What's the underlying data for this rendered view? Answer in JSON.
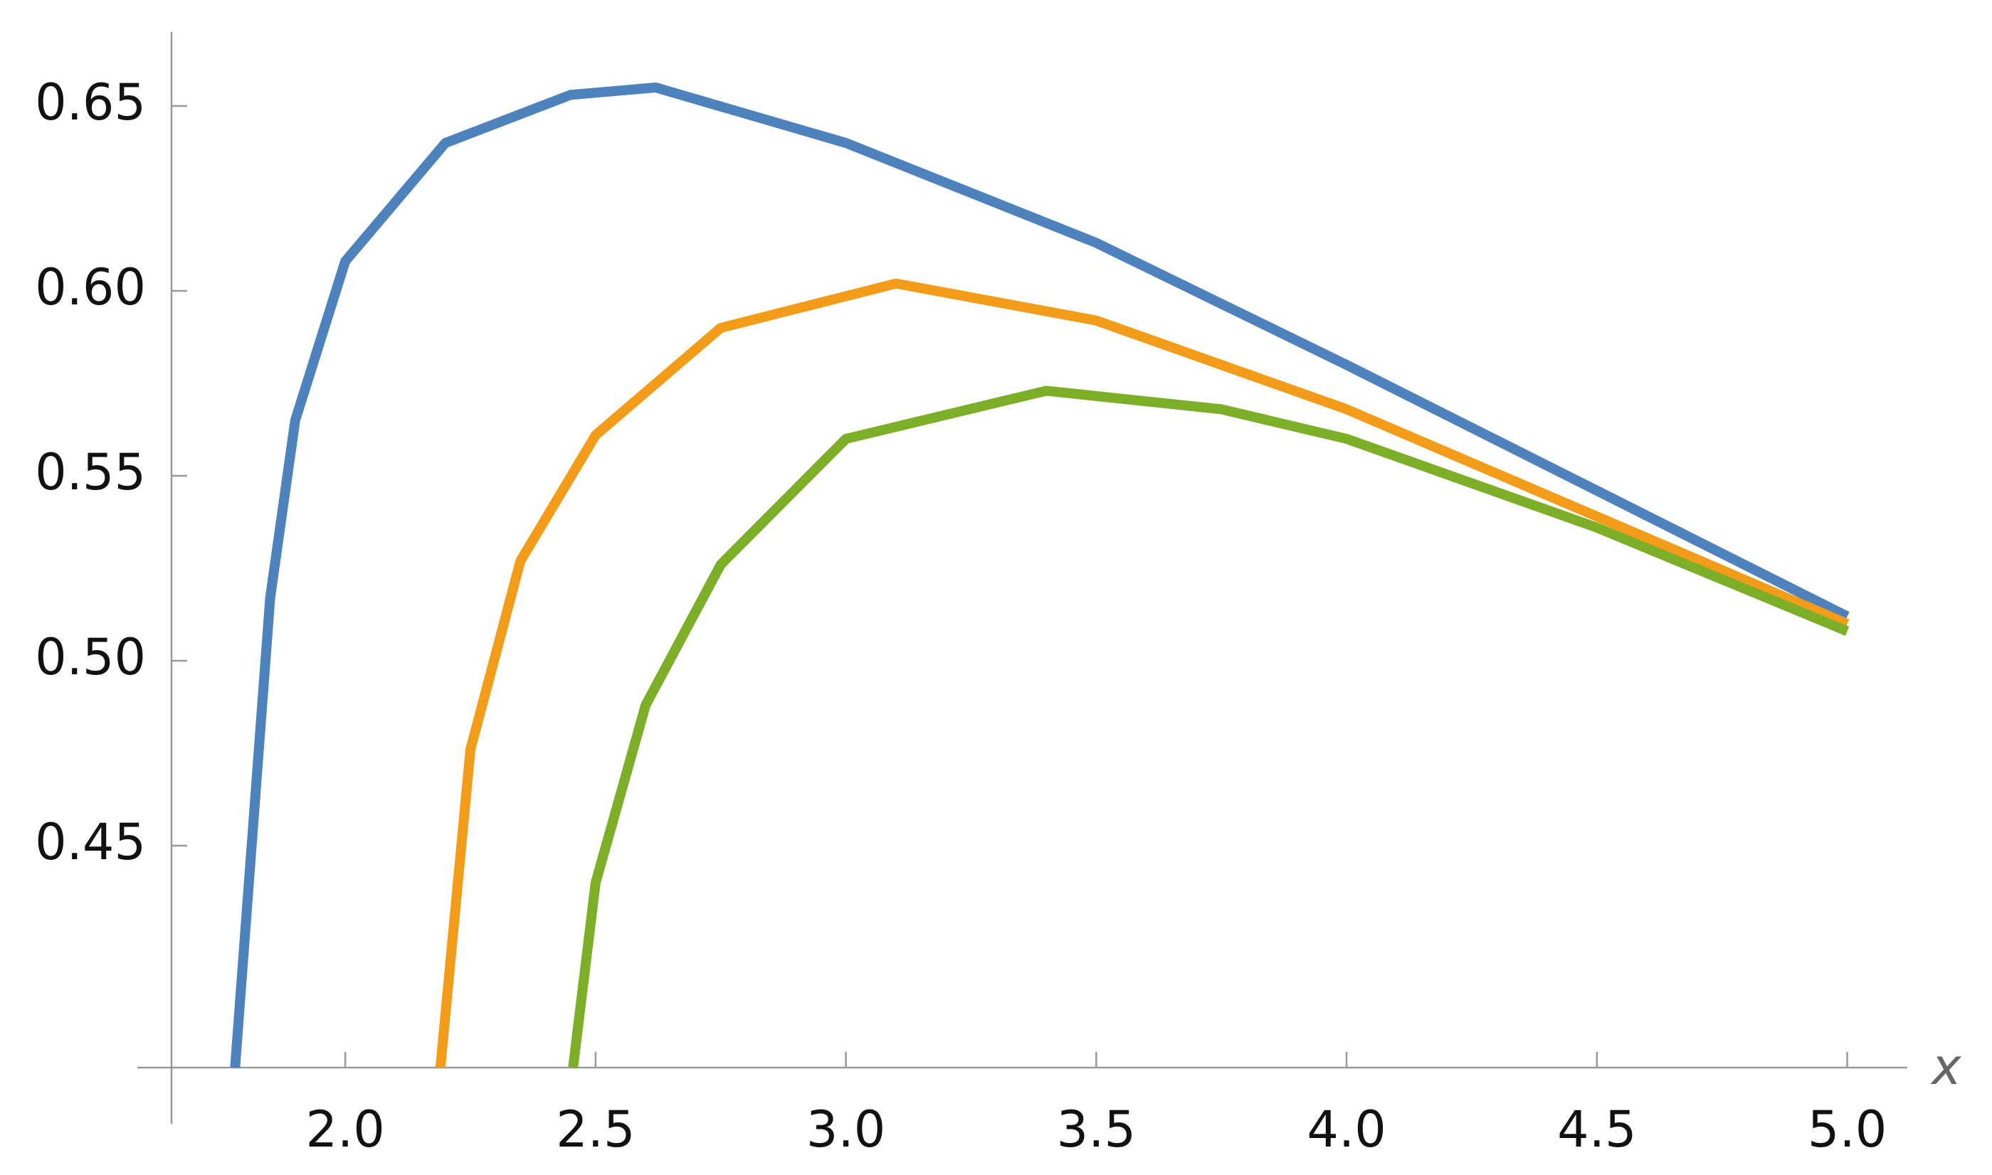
{
  "chart_data": {
    "type": "line",
    "x_label": "x",
    "xlim": [
      1.653,
      5.12
    ],
    "ylim": [
      0.39,
      0.67
    ],
    "xticks": [
      {
        "value": 2,
        "label": "2.0"
      },
      {
        "value": 2.5,
        "label": "2.5"
      },
      {
        "value": 3,
        "label": "3.0"
      },
      {
        "value": 3.5,
        "label": "3.5"
      },
      {
        "value": 4,
        "label": "4.0"
      },
      {
        "value": 4.5,
        "label": "4.5"
      },
      {
        "value": 5,
        "label": "5.0"
      }
    ],
    "yticks": [
      0.45,
      {
        "value": 0.5,
        "label": "0.50"
      },
      0.55,
      {
        "value": 0.6,
        "label": "0.60"
      },
      0.65
    ],
    "series": [
      {
        "color": "#4d82bc",
        "x": [
          1.78,
          1.85,
          1.9,
          2.0,
          2.2,
          2.45,
          2.62,
          3.0,
          3.5,
          4.0,
          4.5,
          5.0
        ],
        "values": [
          0.39,
          0.517,
          0.565,
          0.608,
          0.64,
          0.653,
          0.655,
          0.64,
          0.613,
          0.58,
          0.546,
          0.512
        ]
      },
      {
        "color": "#f39c19",
        "x": [
          2.19,
          2.25,
          2.35,
          2.5,
          2.75,
          3.1,
          3.5,
          4.0,
          4.5,
          5.0
        ],
        "values": [
          0.39,
          0.476,
          0.527,
          0.561,
          0.59,
          0.602,
          0.592,
          0.568,
          0.539,
          0.51
        ]
      },
      {
        "color": "#7dae28",
        "x": [
          2.455,
          2.5,
          2.6,
          2.75,
          3.0,
          3.4,
          3.75,
          4.0,
          4.5,
          5.0
        ],
        "values": [
          0.39,
          0.44,
          0.488,
          0.526,
          0.56,
          0.573,
          0.568,
          0.56,
          0.536,
          0.508
        ]
      }
    ]
  }
}
